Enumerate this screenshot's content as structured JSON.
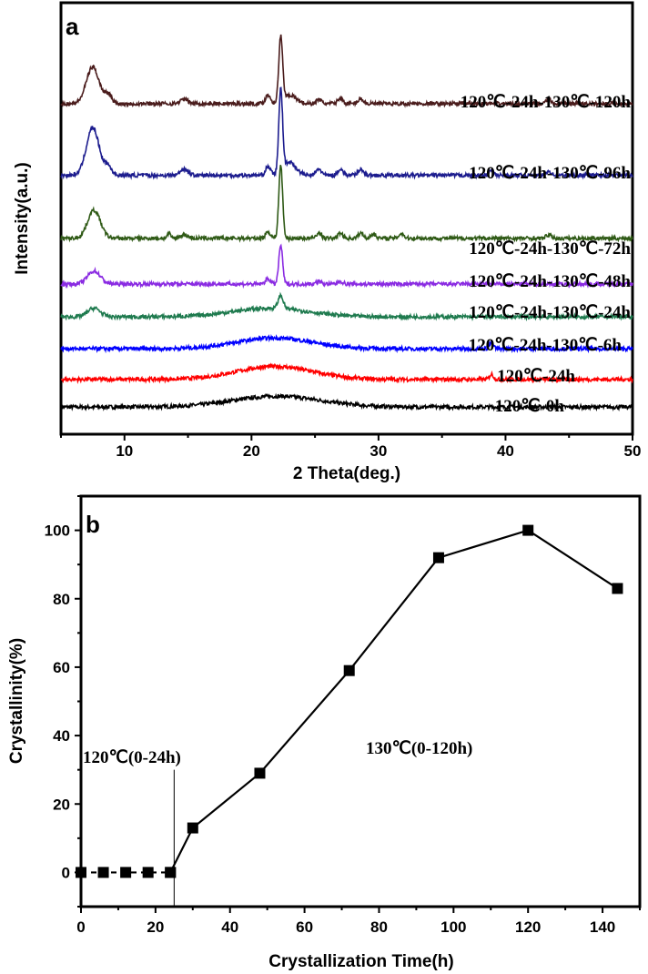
{
  "chart_data": [
    {
      "type": "line",
      "panel_label": "a",
      "xlabel": "2 Theta(deg.)",
      "ylabel": "Intensity(a.u.)",
      "xlim": [
        5,
        50
      ],
      "xticks": [
        10,
        20,
        30,
        40,
        50
      ],
      "ylim": [
        0,
        100
      ],
      "yticks": [],
      "grid": false,
      "legend": "inline labels at right of each curve",
      "series": [
        {
          "name": "120℃-0h",
          "color": "#000000",
          "baseline": 6.3,
          "peaks": [
            [
              22,
              2.5,
              3.5
            ]
          ]
        },
        {
          "name": "120℃-24h",
          "color": "#ff0000",
          "baseline": 12.7,
          "peaks": [
            [
              21.8,
              3,
              3
            ],
            [
              38.9,
              1.2,
              0.15
            ]
          ]
        },
        {
          "name": "120℃-24h-130℃-6h",
          "color": "#0000ff",
          "baseline": 19.8,
          "peaks": [
            [
              21.8,
              2.5,
              3
            ],
            [
              38.9,
              1.5,
              0.15
            ]
          ]
        },
        {
          "name": "120℃-24h-130℃-24h",
          "color": "#1e7a4e",
          "baseline": 27.2,
          "peaks": [
            [
              7.6,
              2,
              0.5
            ],
            [
              21.5,
              2,
              3
            ],
            [
              22.3,
              3,
              0.2
            ]
          ]
        },
        {
          "name": "120℃-24h-130℃-48h",
          "color": "#8a2be2",
          "baseline": 34.8,
          "peaks": [
            [
              7.6,
              3,
              0.5
            ],
            [
              21.3,
              1.2,
              0.2
            ],
            [
              22.3,
              9,
              0.15
            ],
            [
              25.3,
              0.6,
              0.2
            ],
            [
              27,
              0.6,
              0.2
            ]
          ]
        },
        {
          "name": "120℃-24h-130℃-72h",
          "color": "#2f5a16",
          "baseline": 45.4,
          "peaks": [
            [
              7.6,
              6.5,
              0.5
            ],
            [
              13.5,
              1,
              0.15
            ],
            [
              14.7,
              0.8,
              0.3
            ],
            [
              21.3,
              1.5,
              0.2
            ],
            [
              22.3,
              17,
              0.15
            ],
            [
              25.3,
              1.2,
              0.2
            ],
            [
              27,
              1.2,
              0.2
            ],
            [
              28.6,
              1.2,
              0.2
            ],
            [
              29.6,
              1,
              0.2
            ],
            [
              31.8,
              1.1,
              0.2
            ],
            [
              43.4,
              0.8,
              0.2
            ]
          ]
        },
        {
          "name": "120℃-24h-130℃-96h",
          "color": "#1c1c8e",
          "baseline": 60,
          "peaks": [
            [
              7.5,
              11,
              0.5
            ],
            [
              8.7,
              2,
              0.3
            ],
            [
              14.7,
              1.5,
              0.3
            ],
            [
              21.3,
              2,
              0.2
            ],
            [
              22.3,
              19,
              0.15
            ],
            [
              23,
              3,
              0.5
            ],
            [
              25.3,
              1.5,
              0.2
            ],
            [
              27,
              1.5,
              0.2
            ],
            [
              28.6,
              1.5,
              0.2
            ],
            [
              38.9,
              1.2,
              0.15
            ],
            [
              43.4,
              1,
              0.2
            ]
          ]
        },
        {
          "name": "120℃-24h-130℃-120h",
          "color": "#4a1c1c",
          "baseline": 76.6,
          "peaks": [
            [
              7.5,
              8.5,
              0.5
            ],
            [
              8.7,
              2,
              0.3
            ],
            [
              14.7,
              1,
              0.3
            ],
            [
              21.3,
              2,
              0.2
            ],
            [
              22.3,
              15,
              0.15
            ],
            [
              23,
              2,
              0.5
            ],
            [
              25.3,
              1,
              0.2
            ],
            [
              27,
              1.3,
              0.2
            ],
            [
              28.6,
              1.2,
              0.2
            ],
            [
              43.4,
              1,
              0.2
            ]
          ]
        }
      ]
    },
    {
      "type": "line",
      "panel_label": "b",
      "xlabel": "Crystallization Time(h)",
      "ylabel": "Crystallinity(%)",
      "xlim": [
        0,
        150
      ],
      "xticks": [
        0,
        20,
        40,
        60,
        80,
        100,
        120,
        140
      ],
      "ylim": [
        -10,
        110
      ],
      "yticks": [
        0,
        20,
        40,
        60,
        80,
        100
      ],
      "grid": false,
      "marker": "square",
      "series": [
        {
          "segment": "120℃ stage",
          "style": "dashed",
          "x": [
            0,
            6,
            12,
            18,
            24
          ],
          "y": [
            0,
            0,
            0,
            0,
            0
          ]
        },
        {
          "segment": "130℃ stage",
          "style": "solid",
          "x": [
            24,
            30,
            48,
            72,
            96,
            120,
            144
          ],
          "y": [
            0,
            13,
            29,
            59,
            92,
            100,
            83
          ]
        }
      ],
      "vline_x": 25,
      "annotations": [
        "120℃(0-24h)",
        "130℃(0-120h)"
      ]
    }
  ]
}
